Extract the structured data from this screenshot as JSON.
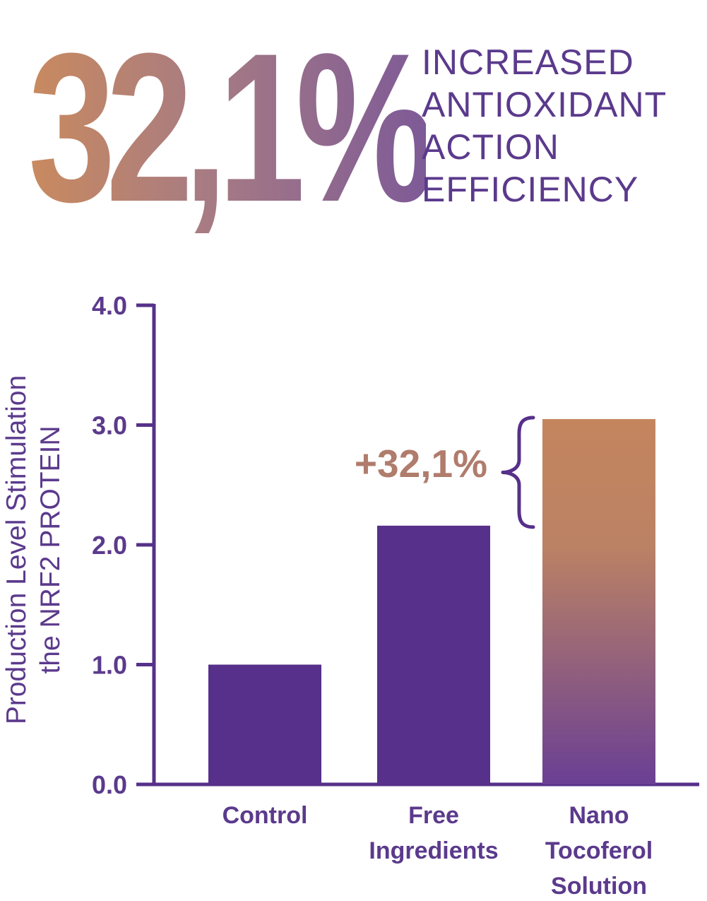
{
  "headline": {
    "big_number": "32,1%",
    "lines": [
      "INCREASED",
      "ANTIOXIDANT",
      "ACTION",
      "EFFICIENCY"
    ]
  },
  "colors": {
    "primary": "#56308a",
    "bar_gradient_top": "#c4855e",
    "bar_gradient_bottom": "#6a3f94",
    "annotation": "#b07c6c"
  },
  "chart_data": {
    "type": "bar",
    "ylabel_lines": [
      "Production Level Stimulation",
      "the NRF2 PROTEIN"
    ],
    "yticks": [
      "0.0",
      "1.0",
      "2.0",
      "3.0",
      "4.0"
    ],
    "ylim": [
      0,
      4
    ],
    "categories": [
      [
        "Control"
      ],
      [
        "Free",
        "Ingredients"
      ],
      [
        "Nano",
        "Tocoferol",
        "Solution"
      ]
    ],
    "values": [
      1.0,
      2.16,
      3.05
    ],
    "annotation": "+32,1%",
    "grid": false,
    "legend": "none"
  }
}
